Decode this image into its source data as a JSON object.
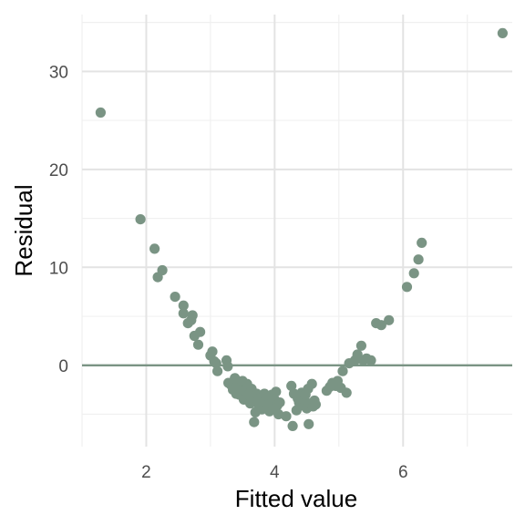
{
  "chart_data": {
    "type": "scatter",
    "title": "",
    "xlabel": "Fitted value",
    "ylabel": "Residual",
    "xlim": [
      1.0,
      7.7
    ],
    "ylim": [
      -8.3,
      35.8
    ],
    "x_major_ticks": [
      2,
      4,
      6
    ],
    "x_minor_ticks": [
      1,
      3,
      5,
      7
    ],
    "y_major_ticks": [
      0,
      10,
      20,
      30
    ],
    "y_minor_ticks": [
      -5,
      5,
      15,
      25,
      35
    ],
    "grid": true,
    "legend": "none",
    "reference_line": {
      "y": 0,
      "color": "#7a9484"
    },
    "point_color": "#7a9484",
    "series": [
      {
        "points": [
          [
            1.29,
            25.8
          ],
          [
            1.91,
            14.9
          ],
          [
            2.13,
            11.9
          ],
          [
            2.18,
            9.0
          ],
          [
            2.25,
            9.7
          ],
          [
            2.45,
            7.0
          ],
          [
            2.58,
            6.1
          ],
          [
            2.58,
            5.3
          ],
          [
            2.65,
            4.3
          ],
          [
            2.7,
            4.6
          ],
          [
            2.72,
            5.1
          ],
          [
            2.75,
            3.0
          ],
          [
            2.81,
            2.1
          ],
          [
            2.84,
            3.4
          ],
          [
            3.0,
            1.0
          ],
          [
            3.03,
            1.4
          ],
          [
            3.06,
            0.4
          ],
          [
            3.09,
            0.2
          ],
          [
            3.11,
            -0.6
          ],
          [
            3.25,
            0.5
          ],
          [
            3.27,
            -0.1
          ],
          [
            3.28,
            -1.8
          ],
          [
            3.32,
            -2.0
          ],
          [
            3.35,
            -2.5
          ],
          [
            3.38,
            -1.3
          ],
          [
            3.4,
            -2.9
          ],
          [
            3.42,
            -2.1
          ],
          [
            3.45,
            -3.0
          ],
          [
            3.47,
            -2.3
          ],
          [
            3.5,
            -1.6
          ],
          [
            3.52,
            -3.5
          ],
          [
            3.55,
            -2.7
          ],
          [
            3.57,
            -1.9
          ],
          [
            3.6,
            -3.0
          ],
          [
            3.62,
            -3.9
          ],
          [
            3.64,
            -2.4
          ],
          [
            3.66,
            -3.5
          ],
          [
            3.68,
            -5.8
          ],
          [
            3.7,
            -4.8
          ],
          [
            3.72,
            -2.9
          ],
          [
            3.74,
            -3.7
          ],
          [
            3.76,
            -4.2
          ],
          [
            3.78,
            -3.3
          ],
          [
            3.8,
            -4.5
          ],
          [
            3.82,
            -3.8
          ],
          [
            3.84,
            -2.9
          ],
          [
            3.86,
            -3.6
          ],
          [
            3.88,
            -4.4
          ],
          [
            3.9,
            -3.2
          ],
          [
            3.92,
            -4.7
          ],
          [
            3.94,
            -3.9
          ],
          [
            3.96,
            -3.0
          ],
          [
            3.98,
            -4.3
          ],
          [
            4.0,
            -3.5
          ],
          [
            4.02,
            -2.7
          ],
          [
            4.04,
            -4.1
          ],
          [
            4.06,
            -5.0
          ],
          [
            4.08,
            -3.8
          ],
          [
            4.18,
            -5.2
          ],
          [
            4.26,
            -2.1
          ],
          [
            4.28,
            -6.2
          ],
          [
            4.3,
            -2.9
          ],
          [
            4.34,
            -4.6
          ],
          [
            4.36,
            -3.4
          ],
          [
            4.38,
            -3.8
          ],
          [
            4.42,
            -2.8
          ],
          [
            4.44,
            -4.1
          ],
          [
            4.46,
            -3.5
          ],
          [
            4.48,
            -3.0
          ],
          [
            4.5,
            -4.4
          ],
          [
            4.52,
            -2.4
          ],
          [
            4.53,
            -6.0
          ],
          [
            4.55,
            -3.9
          ],
          [
            4.58,
            -1.9
          ],
          [
            4.6,
            -4.2
          ],
          [
            4.62,
            -3.6
          ],
          [
            4.64,
            -4.0
          ],
          [
            4.81,
            -2.6
          ],
          [
            4.86,
            -2.2
          ],
          [
            4.9,
            -1.8
          ],
          [
            4.95,
            -2.1
          ],
          [
            4.98,
            -1.6
          ],
          [
            5.03,
            -2.3
          ],
          [
            5.06,
            -0.6
          ],
          [
            5.12,
            -2.8
          ],
          [
            5.16,
            0.2
          ],
          [
            5.25,
            0.5
          ],
          [
            5.29,
            1.1
          ],
          [
            5.35,
            2.0
          ],
          [
            5.38,
            0.5
          ],
          [
            5.43,
            0.7
          ],
          [
            5.5,
            0.5
          ],
          [
            5.58,
            4.3
          ],
          [
            5.66,
            4.1
          ],
          [
            5.78,
            4.6
          ],
          [
            6.06,
            8.0
          ],
          [
            6.17,
            9.4
          ],
          [
            6.24,
            10.8
          ],
          [
            6.29,
            12.5
          ],
          [
            7.55,
            33.9
          ]
        ]
      }
    ]
  }
}
